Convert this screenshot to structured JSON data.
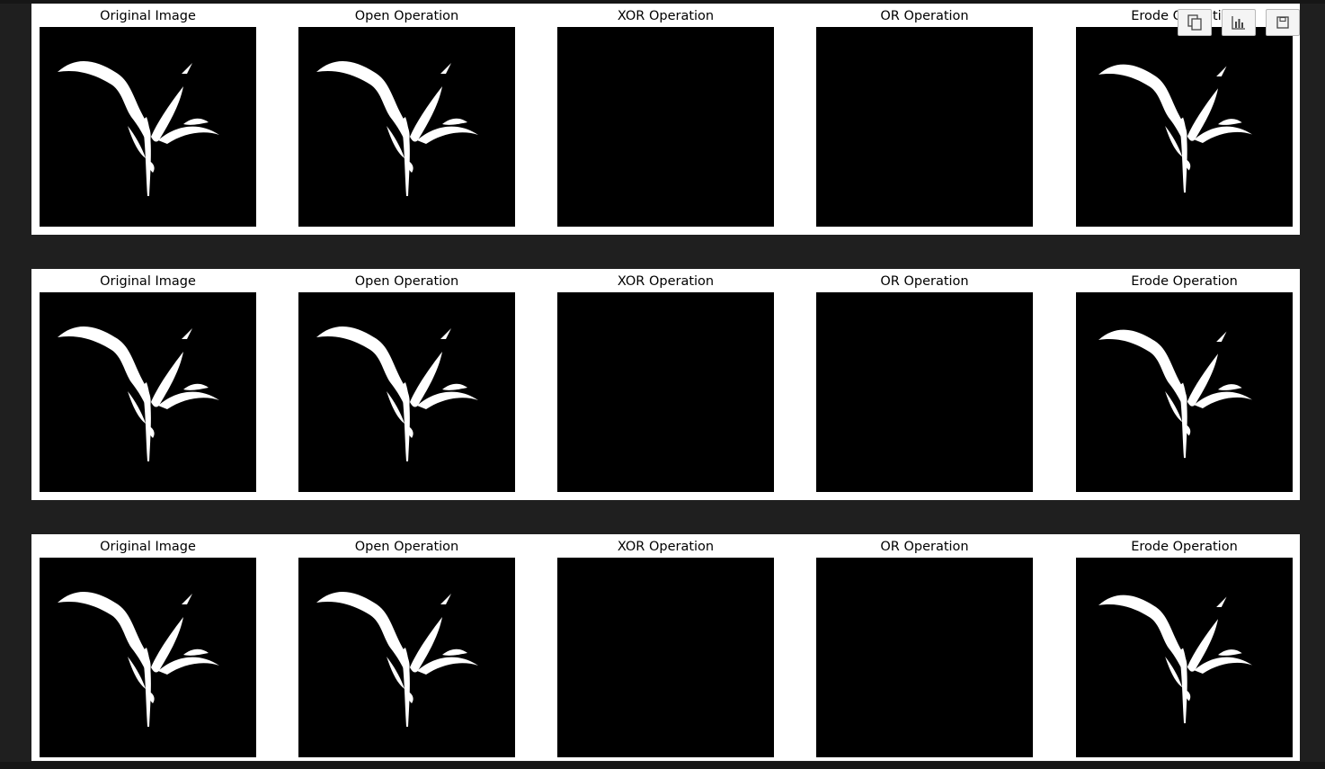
{
  "figures": [
    {
      "panels": [
        {
          "title": "Original Image",
          "image": "leaf-mask",
          "variant": 1.0
        },
        {
          "title": "Open Operation",
          "image": "leaf-mask",
          "variant": 1.0
        },
        {
          "title": "XOR Operation",
          "image": "blank"
        },
        {
          "title": "OR Operation",
          "image": "blank"
        },
        {
          "title": "Erode Operation",
          "image": "leaf-mask",
          "variant": 0.95
        }
      ]
    },
    {
      "panels": [
        {
          "title": "Original Image",
          "image": "leaf-mask",
          "variant": 1.0
        },
        {
          "title": "Open Operation",
          "image": "leaf-mask",
          "variant": 1.0
        },
        {
          "title": "XOR Operation",
          "image": "blank"
        },
        {
          "title": "OR Operation",
          "image": "blank"
        },
        {
          "title": "Erode Operation",
          "image": "leaf-mask",
          "variant": 0.95
        }
      ]
    },
    {
      "panels": [
        {
          "title": "Original Image",
          "image": "leaf-mask",
          "variant": 1.0
        },
        {
          "title": "Open Operation",
          "image": "leaf-mask",
          "variant": 1.0
        },
        {
          "title": "XOR Operation",
          "image": "blank"
        },
        {
          "title": "OR Operation",
          "image": "blank"
        },
        {
          "title": "Erode Operation",
          "image": "leaf-mask",
          "variant": 0.95
        }
      ]
    }
  ],
  "toolbar": {
    "buttons": [
      {
        "icon": "copy-icon"
      },
      {
        "icon": "chart-icon"
      },
      {
        "icon": "save-icon"
      }
    ]
  }
}
